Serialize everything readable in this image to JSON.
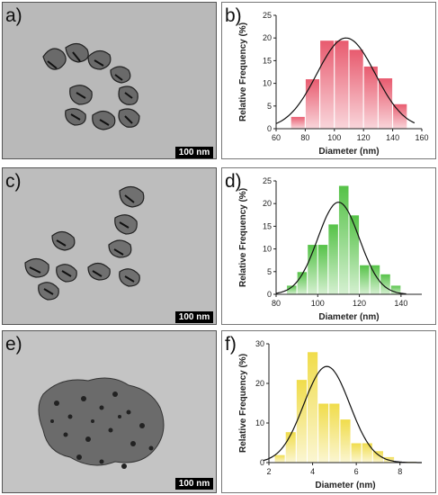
{
  "panel_labels": [
    "a)",
    "b)",
    "c)",
    "d)",
    "e)",
    "f)"
  ],
  "scale_bar_label": "100 nm",
  "colors": {
    "red_bars": "#e85a6e",
    "green_bars": "#55c247",
    "yellow_bars": "#f0dc4a",
    "fit_curve": "#111111",
    "tem_background": "#b9b9b9"
  },
  "chart_data": [
    {
      "type": "bar",
      "panel": "b)",
      "xlabel": "Diameter (nm)",
      "ylabel": "Relative Frequency (%)",
      "xlim": [
        60,
        160
      ],
      "ylim": [
        0,
        25
      ],
      "xticks": [
        60,
        80,
        100,
        120,
        140,
        160
      ],
      "yticks": [
        0,
        5,
        10,
        15,
        20,
        25
      ],
      "bin_edges": [
        70,
        80,
        90,
        100,
        110,
        120,
        130,
        140,
        150
      ],
      "values": [
        2.7,
        11,
        19.5,
        19.5,
        17.5,
        13.8,
        11.2,
        5.5
      ],
      "fit": {
        "type": "gaussian",
        "center": 108,
        "amplitude": 20,
        "sigma": 20
      },
      "bar_color": "#e85a6e"
    },
    {
      "type": "bar",
      "panel": "d)",
      "xlabel": "Diameter (nm)",
      "ylabel": "Relative Frequency (%)",
      "xlim": [
        80,
        150
      ],
      "ylim": [
        0,
        25
      ],
      "xticks": [
        80,
        100,
        120,
        140
      ],
      "yticks": [
        0,
        5,
        10,
        15,
        20,
        25
      ],
      "bin_edges": [
        85,
        90,
        95,
        100,
        105,
        110,
        115,
        120,
        125,
        130,
        135,
        140
      ],
      "values": [
        2,
        5,
        11,
        11,
        15.5,
        24,
        17.5,
        6.5,
        6.5,
        4.5,
        2
      ],
      "fit": {
        "type": "gaussian",
        "center": 110,
        "amplitude": 20.3,
        "sigma": 10
      },
      "bar_color": "#55c247"
    },
    {
      "type": "bar",
      "panel": "f)",
      "xlabel": "Diameter (nm)",
      "ylabel": "Relative Frequency (%)",
      "xlim": [
        2,
        9
      ],
      "ylim": [
        0,
        30
      ],
      "xticks": [
        2,
        4,
        6,
        8
      ],
      "yticks": [
        0,
        10,
        20,
        30
      ],
      "bin_edges": [
        2.25,
        2.75,
        3.25,
        3.75,
        4.25,
        4.75,
        5.25,
        5.75,
        6.25,
        6.75,
        7.25,
        7.75,
        8.25,
        8.75
      ],
      "values": [
        2,
        7.8,
        21,
        28,
        15,
        15,
        11,
        5,
        5,
        3,
        1.5,
        0.3,
        0.3
      ],
      "fit": {
        "type": "gaussian",
        "center": 4.65,
        "amplitude": 24.3,
        "sigma": 1.05
      },
      "bar_color": "#f0dc4a"
    }
  ]
}
